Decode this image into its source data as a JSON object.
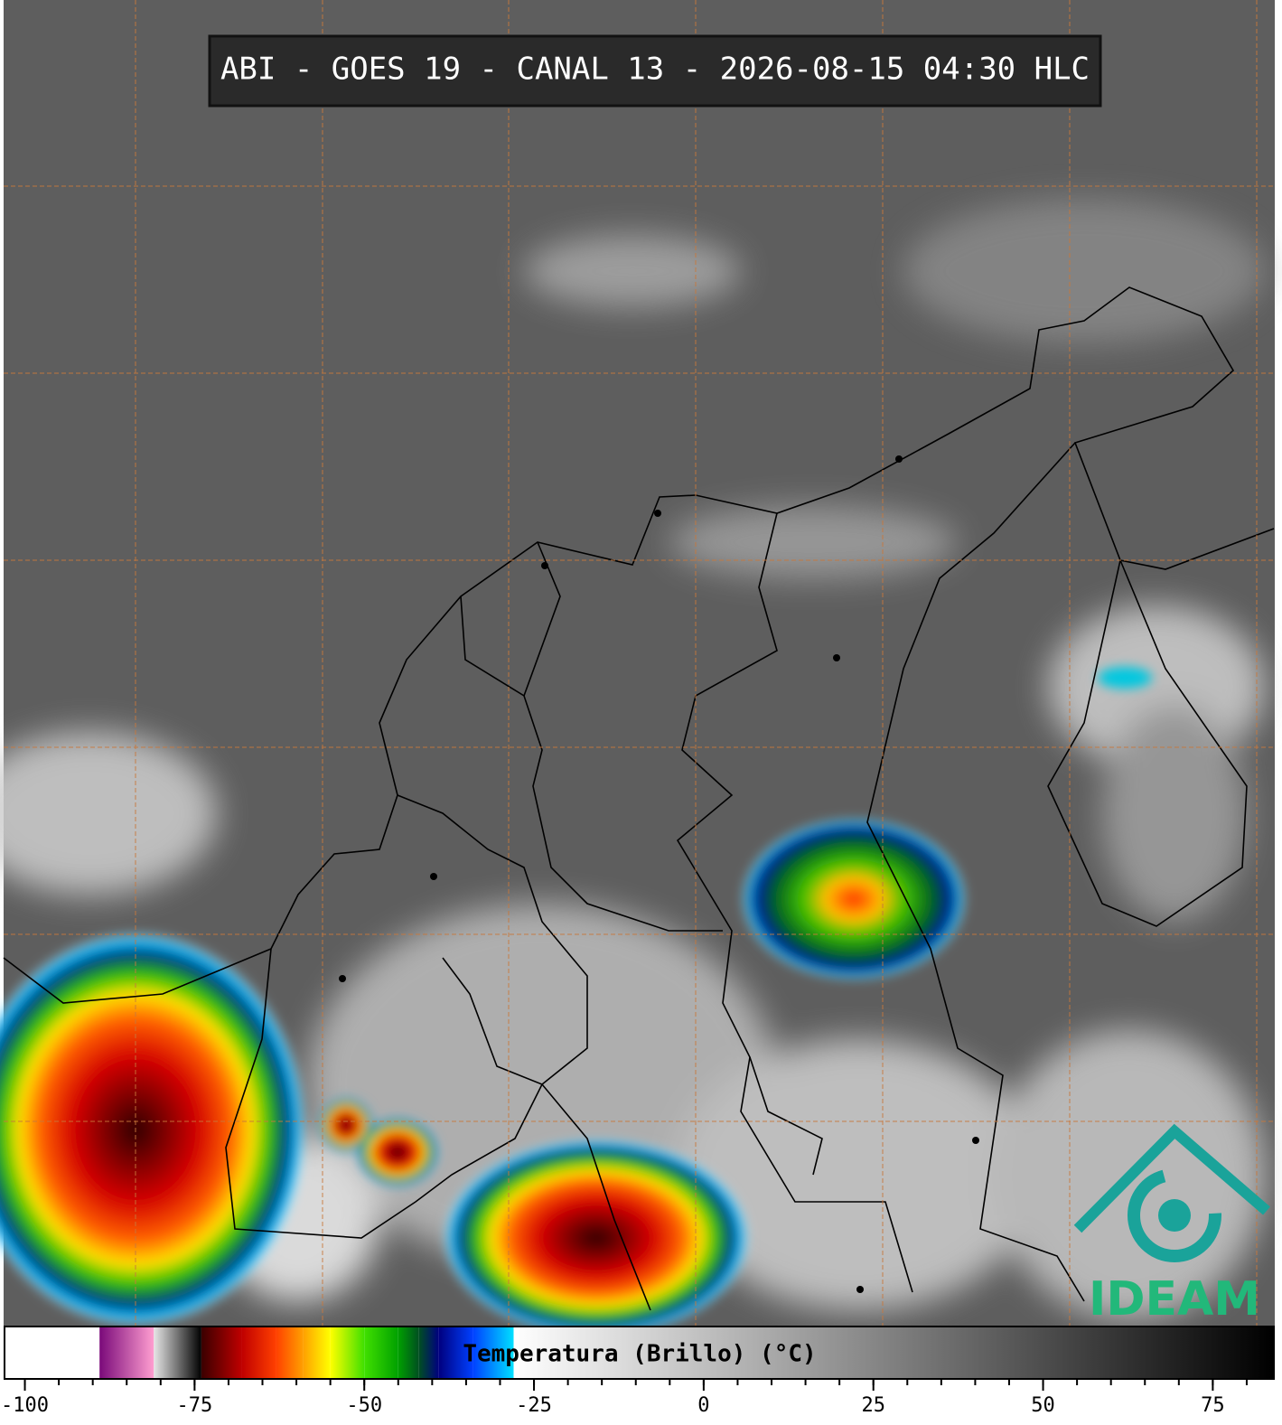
{
  "title": "ABI - GOES 19 - CANAL 13 - 2026-08-15 04:30 HLC",
  "logo": "IDEAM",
  "colorbar": {
    "label": "Temperatura (Brillo) (°C)",
    "xlim": [
      -103,
      84
    ],
    "xticks": [
      -100,
      -75,
      -50,
      -25,
      0,
      25,
      50,
      75
    ],
    "stops": [
      [
        -103,
        "#ffffff"
      ],
      [
        -89,
        "#ffffff"
      ],
      [
        -89,
        "#7a0a7a"
      ],
      [
        -81,
        "#ff9ed0"
      ],
      [
        -81,
        "#e6e6e6"
      ],
      [
        -74,
        "#000000"
      ],
      [
        -74,
        "#3a0000"
      ],
      [
        -68,
        "#c00000"
      ],
      [
        -63,
        "#ff4000"
      ],
      [
        -59,
        "#ffa000"
      ],
      [
        -55,
        "#ffff00"
      ],
      [
        -50,
        "#40e000"
      ],
      [
        -45,
        "#00a000"
      ],
      [
        -42,
        "#005020"
      ],
      [
        -39,
        "#000080"
      ],
      [
        -34,
        "#0040ff"
      ],
      [
        -28,
        "#00e0ff"
      ],
      [
        -28,
        "#ffffff"
      ],
      [
        84,
        "#000000"
      ]
    ]
  }
}
